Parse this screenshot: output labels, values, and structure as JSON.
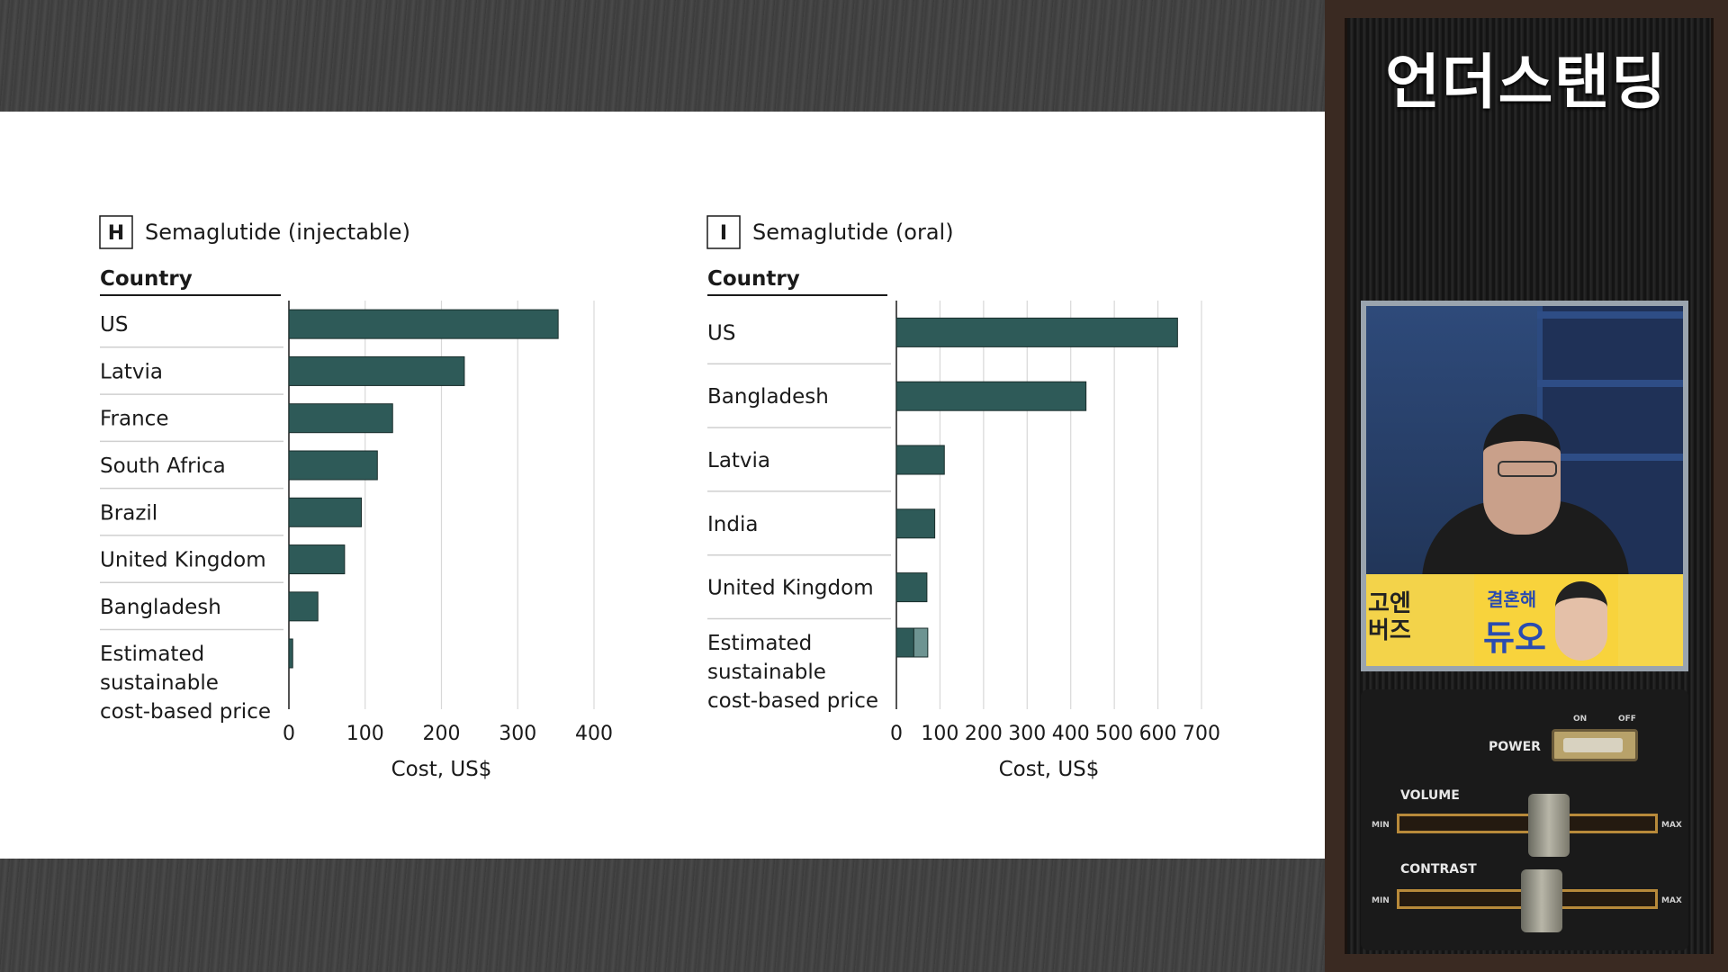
{
  "chart_data": [
    {
      "type": "bar",
      "panel_letter": "H",
      "title": "Semaglutide (injectable)",
      "category_header": "Country",
      "categories": [
        "US",
        "Latvia",
        "France",
        "South Africa",
        "Brazil",
        "United Kingdom",
        "Bangladesh",
        "Estimated sustainable cost-based price"
      ],
      "category_lines": [
        [
          "US"
        ],
        [
          "Latvia"
        ],
        [
          "France"
        ],
        [
          "South Africa"
        ],
        [
          "Brazil"
        ],
        [
          "United Kingdom"
        ],
        [
          "Bangladesh"
        ],
        [
          "Estimated",
          "sustainable",
          "cost-based price"
        ]
      ],
      "values": [
        353,
        230,
        136,
        116,
        95,
        73,
        38,
        5
      ],
      "xlabel": "Cost, US$",
      "xlim": [
        0,
        400
      ],
      "xticks": [
        "0",
        "100",
        "200",
        "300",
        "400"
      ],
      "grid": "vertical",
      "orientation": "horizontal",
      "bar_color": "#2e5a58"
    },
    {
      "type": "bar",
      "panel_letter": "I",
      "title": "Semaglutide (oral)",
      "category_header": "Country",
      "categories": [
        "US",
        "Bangladesh",
        "Latvia",
        "India",
        "United Kingdom",
        "Estimated sustainable cost-based price"
      ],
      "category_lines": [
        [
          "US"
        ],
        [
          "Bangladesh"
        ],
        [
          "Latvia"
        ],
        [
          "India"
        ],
        [
          "United Kingdom"
        ],
        [
          "Estimated",
          "sustainable",
          "cost-based price"
        ]
      ],
      "values": [
        645,
        435,
        110,
        88,
        70,
        72
      ],
      "range_low": [
        null,
        null,
        null,
        null,
        null,
        40
      ],
      "xlabel": "Cost, US$",
      "xlim": [
        0,
        700
      ],
      "xticks": [
        "0",
        "100",
        "200",
        "300",
        "400",
        "500",
        "600",
        "700"
      ],
      "grid": "vertical",
      "orientation": "horizontal",
      "bar_color": "#2e5a58",
      "range_color": "#6e9492"
    }
  ],
  "side_panel": {
    "show_title": "언더스탠딩",
    "banner_left": "고엔\n버즈",
    "banner_small": "결혼해",
    "banner_big": "듀오",
    "power_label": "POWER",
    "on_label": "ON",
    "off_label": "OFF",
    "volume_label": "VOLUME",
    "contrast_label": "CONTRAST",
    "min_label": "MIN",
    "max_label": "MAX"
  }
}
